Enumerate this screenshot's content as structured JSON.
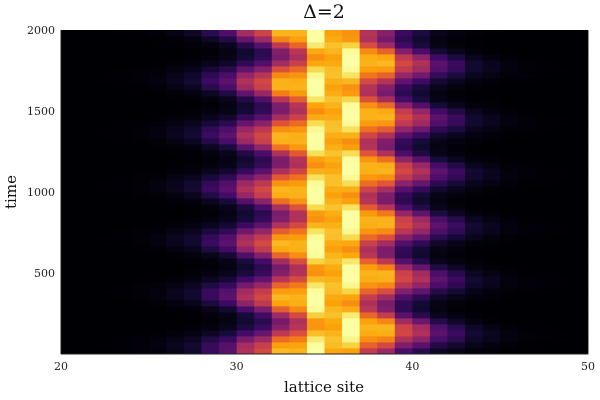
{
  "chart_data": {
    "type": "heatmap",
    "title": "Δ=2",
    "xlabel": "lattice site",
    "ylabel": "time",
    "xlim": [
      20,
      50
    ],
    "ylim": [
      0,
      2000
    ],
    "xticks": [
      20,
      30,
      40,
      50
    ],
    "yticks": [
      500,
      1000,
      1500,
      2000
    ],
    "colormap": "inferno",
    "x_sites": [
      20,
      21,
      22,
      23,
      24,
      25,
      26,
      27,
      28,
      29,
      30,
      31,
      32,
      33,
      34,
      35,
      36,
      37,
      38,
      39,
      40,
      41,
      42,
      43,
      44,
      45,
      46,
      47,
      48,
      49
    ],
    "oscillation": {
      "mean_center": 35.5,
      "period": 330,
      "phase_offset": 85,
      "envelope_width": 4.2,
      "breathing_amplitude": 0.18,
      "drift_amplitude": 1.2
    },
    "value_range": [
      0,
      1
    ]
  }
}
